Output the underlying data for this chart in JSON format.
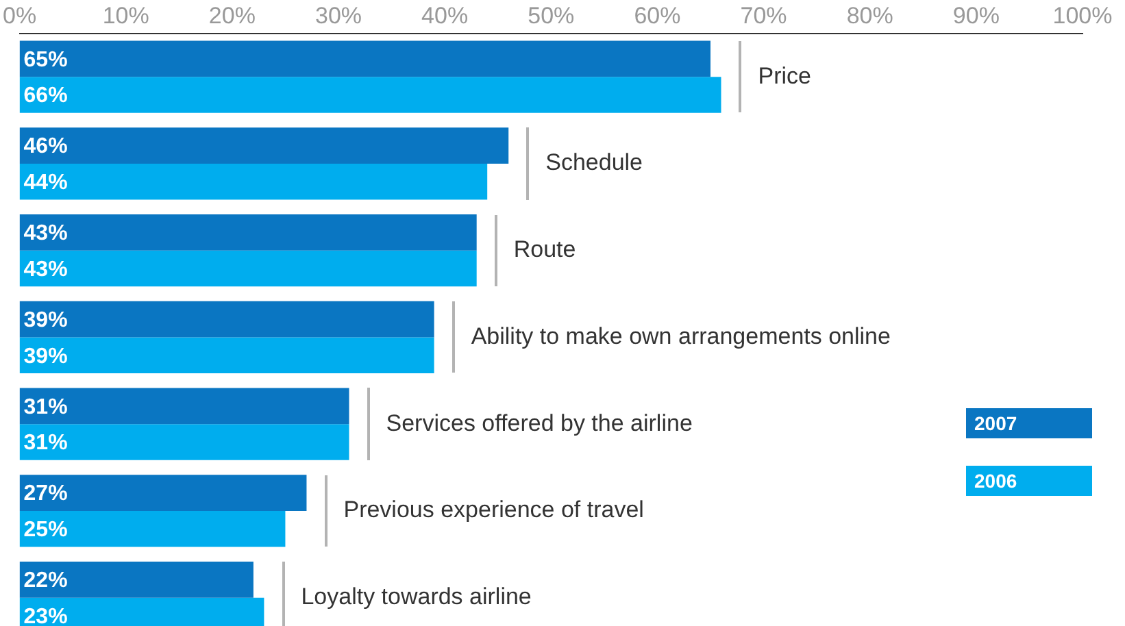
{
  "chart_data": {
    "type": "bar",
    "orientation": "horizontal",
    "categories": [
      "Price",
      "Schedule",
      "Route",
      "Ability to make own arrangements online",
      "Services offered by the airline",
      "Previous experience of travel",
      "Loyalty towards airline"
    ],
    "series": [
      {
        "name": "2007",
        "color": "#0a76c2",
        "values": [
          65,
          46,
          43,
          39,
          31,
          27,
          22
        ],
        "value_labels": [
          "65%",
          "46%",
          "43%",
          "39%",
          "31%",
          "27%",
          "22%"
        ]
      },
      {
        "name": "2006",
        "color": "#00adee",
        "values": [
          66,
          44,
          43,
          39,
          31,
          25,
          23
        ],
        "value_labels": [
          "66%",
          "44%",
          "43%",
          "39%",
          "31%",
          "25%",
          "23%"
        ]
      }
    ],
    "xlim": [
      0,
      100
    ],
    "xticks": [
      {
        "value": 0,
        "label": "0%"
      },
      {
        "value": 10,
        "label": "10%"
      },
      {
        "value": 20,
        "label": "20%"
      },
      {
        "value": 30,
        "label": "30%"
      },
      {
        "value": 40,
        "label": "40%"
      },
      {
        "value": 50,
        "label": "50%"
      },
      {
        "value": 60,
        "label": "60%"
      },
      {
        "value": 70,
        "label": "70%"
      },
      {
        "value": 80,
        "label": "80%"
      },
      {
        "value": 90,
        "label": "90%"
      },
      {
        "value": 100,
        "label": "100%"
      }
    ],
    "grid": false,
    "legend": "right"
  }
}
